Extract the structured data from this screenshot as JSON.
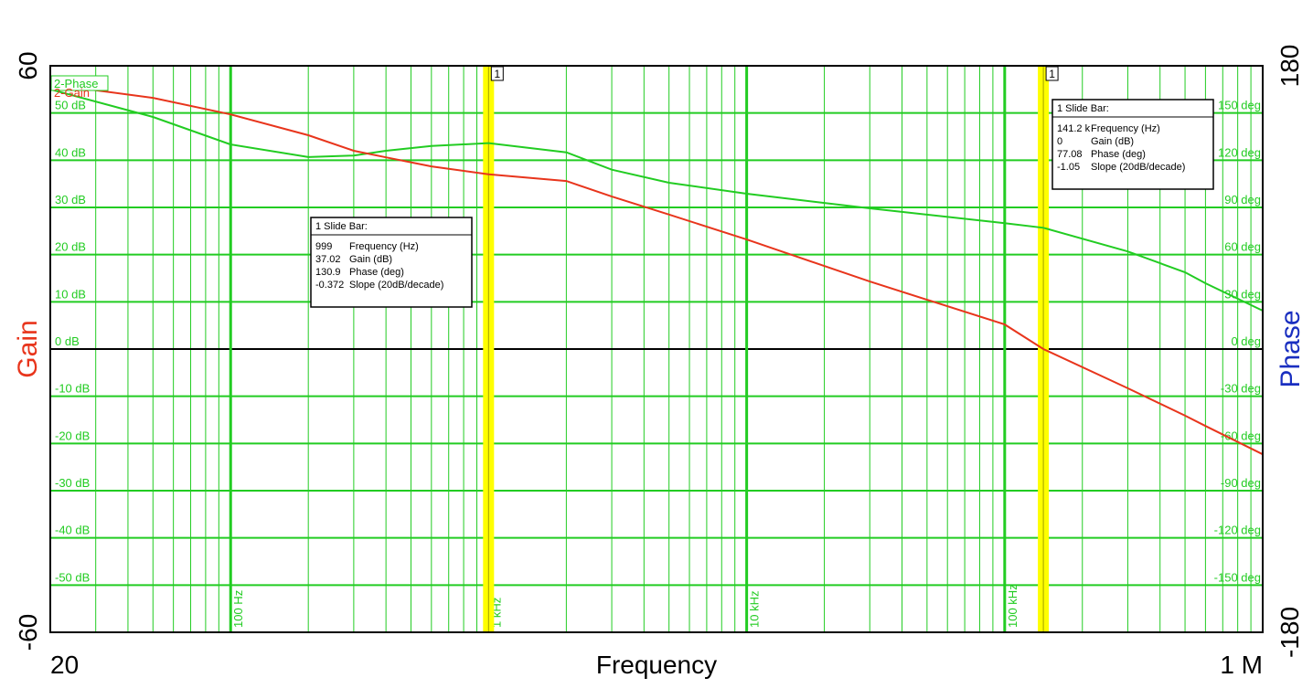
{
  "chart_data": {
    "type": "line",
    "xlabel": "Frequency",
    "ylabel": "Gain",
    "y2label": "Phase",
    "xscale": "log",
    "grid": true,
    "x": [
      20,
      50,
      100,
      200,
      300,
      400,
      600,
      999,
      2000,
      3000,
      5000,
      10000,
      30000,
      100000,
      141200,
      300000,
      500000,
      600000,
      1000000
    ],
    "series": [
      {
        "name": "2-Phase",
        "color": "#22cc22",
        "axis": "y2",
        "values": [
          165,
          147.5,
          130,
          122,
          123,
          126,
          129,
          130.9,
          125,
          114,
          105.7,
          98.7,
          89.4,
          80,
          77.08,
          62,
          48.8,
          41.8,
          24.4
        ]
      },
      {
        "name": "2-Gain",
        "color": "#e8351c",
        "values": [
          56.1,
          53.2,
          49.7,
          45.3,
          42,
          40.6,
          38.7,
          37.02,
          35.6,
          32.3,
          28.5,
          23.2,
          14.3,
          5.2,
          0,
          -8.3,
          -14.1,
          -16.3,
          -22.3
        ]
      }
    ],
    "xlim": [
      20,
      1000000
    ],
    "xticks": [
      {
        "value": 20,
        "label": "20"
      },
      {
        "value": 100,
        "label": "100 Hz"
      },
      {
        "value": 1000,
        "label": "1 kHz"
      },
      {
        "value": 10000,
        "label": "10 kHz"
      },
      {
        "value": 100000,
        "label": "100 kHz"
      },
      {
        "value": 1000000,
        "label": "1 M"
      }
    ],
    "xminorticks": [
      30,
      40,
      50,
      60,
      70,
      80,
      90,
      200,
      300,
      400,
      500,
      600,
      700,
      800,
      900,
      2000,
      3000,
      4000,
      5000,
      6000,
      7000,
      8000,
      9000,
      20000,
      30000,
      40000,
      50000,
      60000,
      70000,
      80000,
      90000,
      200000,
      300000,
      400000,
      500000,
      600000,
      700000,
      800000,
      900000
    ],
    "ylim": [
      -60,
      60
    ],
    "yticks": [
      {
        "value": -60,
        "label": "-60"
      },
      {
        "value": -50,
        "label": "-50 dB"
      },
      {
        "value": -40,
        "label": "-40 dB"
      },
      {
        "value": -30,
        "label": "-30 dB"
      },
      {
        "value": -20,
        "label": "-20 dB"
      },
      {
        "value": -10,
        "label": "-10 dB"
      },
      {
        "value": 0,
        "label": "0 dB"
      },
      {
        "value": 10,
        "label": "10 dB"
      },
      {
        "value": 20,
        "label": "20 dB"
      },
      {
        "value": 30,
        "label": "30 dB"
      },
      {
        "value": 40,
        "label": "40 dB"
      },
      {
        "value": 50,
        "label": "50 dB"
      },
      {
        "value": 60,
        "label": "60"
      }
    ],
    "y2lim": [
      -180,
      180
    ],
    "y2ticks": [
      {
        "value": -180,
        "label": "-180"
      },
      {
        "value": -150,
        "label": "-150 deg"
      },
      {
        "value": -120,
        "label": "-120 deg"
      },
      {
        "value": -90,
        "label": "-90 deg"
      },
      {
        "value": -60,
        "label": "-60 deg"
      },
      {
        "value": -30,
        "label": "-30 deg"
      },
      {
        "value": 0,
        "label": "0 deg"
      },
      {
        "value": 30,
        "label": "30 deg"
      },
      {
        "value": 60,
        "label": "60 deg"
      },
      {
        "value": 90,
        "label": "90 deg"
      },
      {
        "value": 120,
        "label": "120 deg"
      },
      {
        "value": 150,
        "label": "150 deg"
      },
      {
        "value": 180,
        "label": "180"
      }
    ],
    "slide_bars": [
      {
        "x": 999,
        "label": "1"
      },
      {
        "x": 141200,
        "label": "1"
      }
    ],
    "readouts": [
      {
        "title": "1  Slide Bar:",
        "rows": [
          [
            "999",
            "Frequency (Hz)"
          ],
          [
            "37.02",
            "Gain (dB)"
          ],
          [
            "130.9",
            "Phase (deg)"
          ],
          [
            "-0.372",
            "Slope (20dB/decade)"
          ]
        ]
      },
      {
        "title": "1  Slide Bar:",
        "rows": [
          [
            "141.2 k",
            "Frequency (Hz)"
          ],
          [
            "0",
            "Gain (dB)"
          ],
          [
            "77.08",
            "Phase (deg)"
          ],
          [
            "-1.05",
            "Slope (20dB/decade)"
          ]
        ]
      }
    ]
  }
}
